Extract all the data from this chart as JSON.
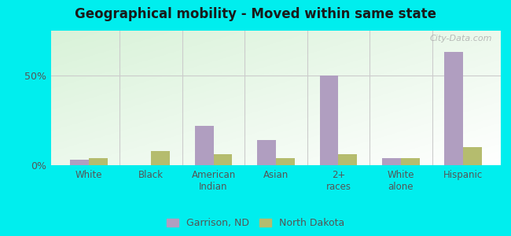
{
  "title": "Geographical mobility - Moved within same state",
  "categories": [
    "White",
    "Black",
    "American\nIndian",
    "Asian",
    "2+\nraces",
    "White\nalone",
    "Hispanic"
  ],
  "garrison_values": [
    3,
    0,
    22,
    14,
    50,
    4,
    63
  ],
  "nd_values": [
    4,
    8,
    6,
    4,
    6,
    4,
    10
  ],
  "garrison_color": "#b09ec0",
  "nd_color": "#b5bc6e",
  "bar_width": 0.3,
  "ylim": [
    0,
    75
  ],
  "ytick_vals": [
    0,
    50
  ],
  "ytick_labels": [
    "0%",
    "50%"
  ],
  "outer_bg": "#00eeee",
  "legend_labels": [
    "Garrison, ND",
    "North Dakota"
  ],
  "watermark": "City-Data.com"
}
